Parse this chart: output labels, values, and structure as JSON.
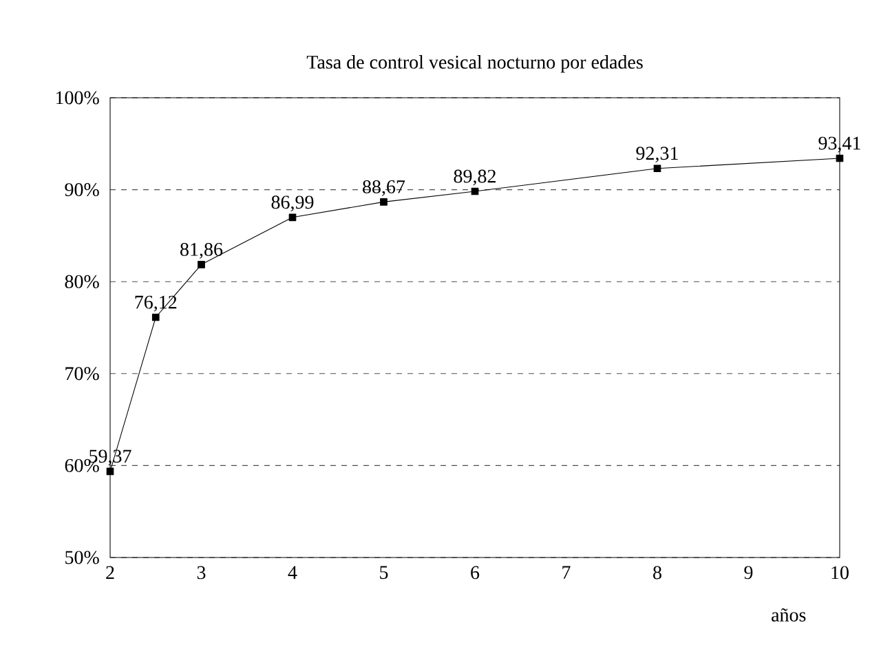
{
  "chart_data": {
    "type": "line",
    "title": "Tasa de control vesical nocturno por edades",
    "xlabel": "años",
    "x": [
      2,
      2.5,
      3,
      4,
      5,
      6,
      8,
      10
    ],
    "series": [
      {
        "color": "#000000",
        "values": [
          59.37,
          76.12,
          81.86,
          86.99,
          88.67,
          89.82,
          92.31,
          93.41
        ],
        "value_labels": [
          "59,37",
          "76,12",
          "81,86",
          "86,99",
          "88,67",
          "89,82",
          "92,31",
          "93,41"
        ]
      }
    ],
    "xlim": [
      2,
      10
    ],
    "xticks": [
      2,
      3,
      4,
      5,
      6,
      7,
      8,
      9,
      10
    ],
    "ylim": [
      50,
      100
    ],
    "yticks": [
      {
        "value": 50,
        "label": "50%"
      },
      {
        "value": 60,
        "label": "60%"
      },
      {
        "value": 70,
        "label": "70%"
      },
      {
        "value": 80,
        "label": "80%"
      },
      {
        "value": 90,
        "label": "90%"
      },
      {
        "value": 100,
        "label": "100%"
      }
    ],
    "grid": "y",
    "marker": "square",
    "line_style": "solid"
  }
}
